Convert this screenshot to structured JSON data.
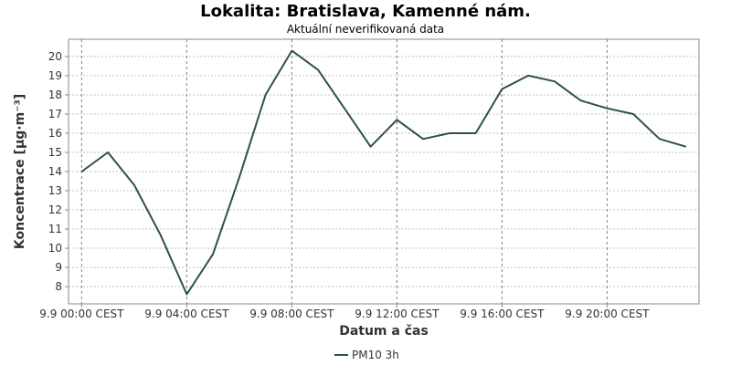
{
  "chart_data": {
    "type": "line",
    "title": "Lokalita: Bratislava, Kamenné nám.",
    "subtitle": "Aktuální neverifikovaná data",
    "xlabel": "Datum a čas",
    "ylabel": "Koncentrace [µg·m⁻³]",
    "x_tick_labels": [
      "9.9 00:00 CEST",
      "9.9 04:00 CEST",
      "9.9 08:00 CEST",
      "9.9 12:00 CEST",
      "9.9 16:00 CEST",
      "9.9 20:00 CEST"
    ],
    "x_tick_hours": [
      0,
      4,
      8,
      12,
      16,
      20
    ],
    "xlim_hours": [
      -0.5,
      23.5
    ],
    "ylim": [
      7.1,
      20.9
    ],
    "y_ticks": [
      8,
      9,
      10,
      11,
      12,
      13,
      14,
      15,
      16,
      17,
      18,
      19,
      20
    ],
    "grid": true,
    "legend_position": "bottom-center",
    "series": [
      {
        "name": "PM10 3h",
        "color": "#2f4f4f",
        "x_hours": [
          0,
          1,
          2,
          3,
          4,
          5,
          6,
          7,
          8,
          9,
          10,
          11,
          12,
          13,
          14,
          15,
          16,
          17,
          18,
          19,
          20,
          21,
          22,
          23
        ],
        "values": [
          14.0,
          15.0,
          13.3,
          10.7,
          7.6,
          9.7,
          13.7,
          18.0,
          20.3,
          19.3,
          17.3,
          15.3,
          16.7,
          15.7,
          16.0,
          16.0,
          18.3,
          19.0,
          18.7,
          17.7,
          17.3,
          17.0,
          15.7,
          15.3
        ]
      }
    ]
  }
}
